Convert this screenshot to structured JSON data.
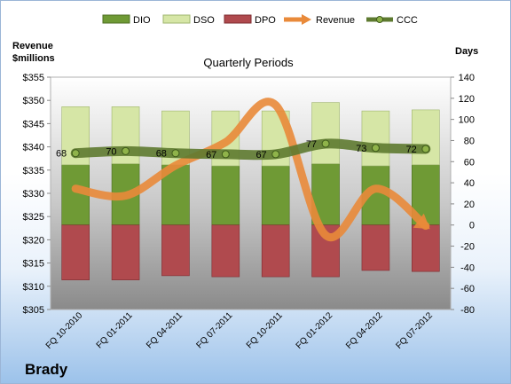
{
  "chart_data": {
    "type": "bar",
    "title": "Quarterly Periods",
    "company": "Brady",
    "y_left_label": [
      "Revenue",
      "$millions"
    ],
    "y_right_label": "Days",
    "y_left_lim": [
      305,
      355
    ],
    "y_left_ticks": [
      "$305",
      "$310",
      "$315",
      "$320",
      "$325",
      "$330",
      "$335",
      "$340",
      "$345",
      "$350",
      "$355"
    ],
    "y_right_lim": [
      -80,
      140
    ],
    "y_right_ticks": [
      "-80",
      "-60",
      "-40",
      "-20",
      "0",
      "20",
      "40",
      "60",
      "80",
      "100",
      "120",
      "140"
    ],
    "categories": [
      "FQ 10-2010",
      "FQ 01-2011",
      "FQ 04-2011",
      "FQ 07-2011",
      "FQ 10-2011",
      "FQ 01-2012",
      "FQ 04-2012",
      "FQ 07-2012"
    ],
    "series": [
      {
        "name": "DIO",
        "kind": "stacked-bar",
        "color": "#6f9a35",
        "values": [
          57,
          58,
          57,
          56,
          56,
          58,
          56,
          57
        ]
      },
      {
        "name": "DSO",
        "kind": "stacked-bar",
        "color": "#d6e6a6",
        "values": [
          55,
          54,
          51,
          52,
          52,
          58,
          52,
          52
        ]
      },
      {
        "name": "DPO",
        "kind": "stacked-bar-negative",
        "color": "#b04a4e",
        "values": [
          -52,
          -52,
          -48,
          -49,
          -49,
          -49,
          -43,
          -44
        ]
      },
      {
        "name": "Revenue",
        "kind": "line",
        "axis": "left",
        "color": "#e98a3a",
        "values": [
          331,
          329.5,
          336,
          341,
          349,
          321,
          331,
          323
        ]
      },
      {
        "name": "CCC",
        "kind": "line",
        "axis": "right",
        "color": "#5e7a30",
        "values": [
          68,
          70,
          68,
          67,
          67,
          77,
          73,
          72
        ],
        "labels": [
          "68",
          "70",
          "68",
          "67",
          "67",
          "77",
          "73",
          "72"
        ]
      }
    ],
    "legend_position": "top",
    "grid": false
  }
}
